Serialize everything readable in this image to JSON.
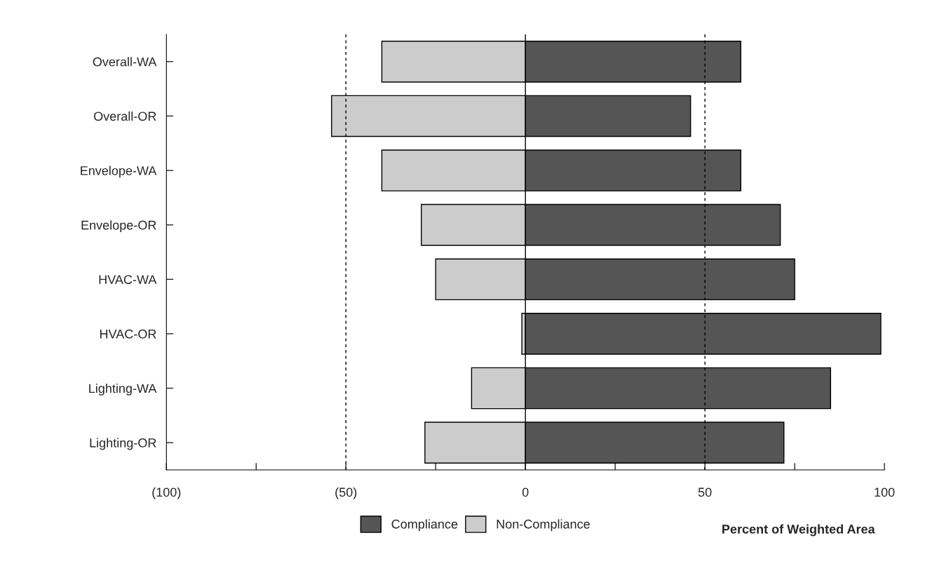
{
  "chart_data": {
    "type": "bar",
    "orientation": "horizontal",
    "stacked": true,
    "xlabel": "Percent of Weighted Area",
    "categories": [
      "Overall-WA",
      "Overall-OR",
      "Envelope-WA",
      "Envelope-OR",
      "HVAC-WA",
      "HVAC-OR",
      "Lighting-WA",
      "Lighting-OR"
    ],
    "series": [
      {
        "name": "Compliance",
        "color": "#555555",
        "values": [
          60,
          46,
          60,
          71,
          75,
          99,
          85,
          72
        ]
      },
      {
        "name": "Non-Compliance",
        "color": "#cccccc",
        "values": [
          -40,
          -54,
          -40,
          -29,
          -25,
          -1,
          -15,
          -28
        ]
      }
    ],
    "xlim": [
      -100,
      100
    ],
    "xticks": [
      {
        "value": -100,
        "label": "(100)"
      },
      {
        "value": -75,
        "label": null
      },
      {
        "value": -50,
        "label": "(50)"
      },
      {
        "value": -25,
        "label": null
      },
      0,
      {
        "value": 25,
        "label": null
      },
      50,
      {
        "value": 75,
        "label": null
      },
      100
    ],
    "ref_lines": [
      {
        "axis": "x",
        "value": -50,
        "line_style": "dashed",
        "color": "#000000"
      },
      {
        "axis": "x",
        "value": 50,
        "line_style": "dashed",
        "color": "#000000"
      },
      {
        "axis": "x",
        "value": 0,
        "line_style": "solid",
        "color": "#000000"
      }
    ],
    "legend": "bottom",
    "grid": false
  }
}
